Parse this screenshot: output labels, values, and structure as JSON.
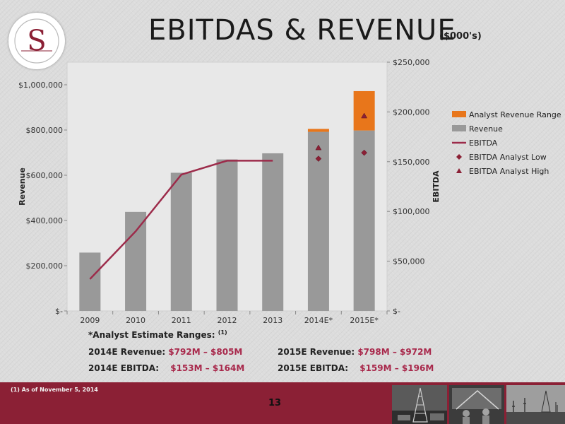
{
  "slide": {
    "title": "EBITDAS & REVENUE",
    "units": "($000's)",
    "page_number": "13",
    "footnote": "(1)   As of November 5, 2014"
  },
  "estimates": {
    "heading": "*Analyst Estimate Ranges:",
    "heading_ref": "(1)",
    "rev2014_label": "2014E Revenue:",
    "rev2014_value": "$792M – $805M",
    "ebitda2014_label": "2014E EBITDA:",
    "ebitda2014_value": "$153M – $164M",
    "rev2015_label": "2015E Revenue:",
    "rev2015_value": "$798M – $972M",
    "ebitda2015_label": "2015E EBITDA:",
    "ebitda2015_value": "$159M – $196M"
  },
  "chart_data": {
    "type": "bar",
    "categories": [
      "2009",
      "2010",
      "2011",
      "2012",
      "2013",
      "2014E*",
      "2015E*"
    ],
    "ylabel": "Revenue",
    "y2label": "EBITDA",
    "ylim": [
      0,
      1100000
    ],
    "y2lim": [
      0,
      250000
    ],
    "y_ticks": [
      {
        "value": 0,
        "label": "$-"
      },
      {
        "value": 200000,
        "label": "$200,000"
      },
      {
        "value": 400000,
        "label": "$400,000"
      },
      {
        "value": 600000,
        "label": "$600,000"
      },
      {
        "value": 800000,
        "label": "$800,000"
      },
      {
        "value": 1000000,
        "label": "$1,000,000"
      }
    ],
    "y2_ticks": [
      {
        "value": 0,
        "label": "$-"
      },
      {
        "value": 50000,
        "label": "$50,000"
      },
      {
        "value": 100000,
        "label": "$100,000"
      },
      {
        "value": 150000,
        "label": "$150,000"
      },
      {
        "value": 200000,
        "label": "$200,000"
      },
      {
        "value": 250000,
        "label": "$250,000"
      }
    ],
    "series": [
      {
        "name": "Revenue",
        "type": "bar",
        "axis": "left",
        "color": "#999999",
        "values": [
          258000,
          438000,
          611000,
          670000,
          697000,
          792000,
          798000
        ]
      },
      {
        "name": "Analyst Revenue Range",
        "type": "bar-stacked",
        "axis": "left",
        "color": "#e8761b",
        "values": [
          null,
          null,
          null,
          null,
          null,
          13000,
          174000
        ]
      },
      {
        "name": "EBITDA",
        "type": "line",
        "axis": "right",
        "color": "#9c2b4a",
        "values": [
          32000,
          80000,
          137000,
          151000,
          151000,
          null,
          null
        ]
      },
      {
        "name": "EBITDA Analyst Low",
        "type": "marker-diamond",
        "axis": "right",
        "color": "#8b2035",
        "values": [
          null,
          null,
          null,
          null,
          null,
          153000,
          159000
        ]
      },
      {
        "name": "EBITDA Analyst High",
        "type": "marker-triangle",
        "axis": "right",
        "color": "#8b2035",
        "values": [
          null,
          null,
          null,
          null,
          null,
          164000,
          196000
        ]
      }
    ],
    "legend_position": "right",
    "grid": false
  }
}
